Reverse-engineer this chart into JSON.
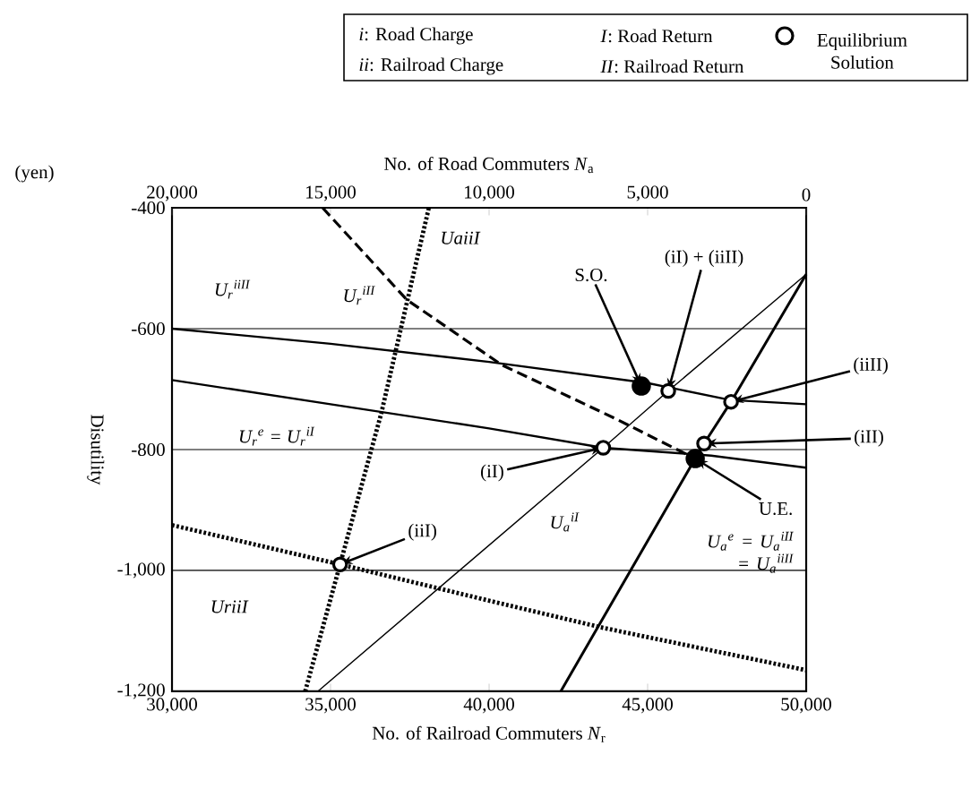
{
  "chart_data": {
    "type": "line",
    "xlabel": "No. of Railroad Commuters *N*$_{r}$",
    "x2label": "No. of Road Commuters *N*$_{a}$",
    "ylabel": "Disutility",
    "xlim": [
      30000,
      50000
    ],
    "xticks": [
      {
        "value": 30000,
        "label": "30,000"
      },
      {
        "value": 35000,
        "label": "35,000"
      },
      {
        "value": 40000,
        "label": "40,000"
      },
      {
        "value": 45000,
        "label": "45,000"
      },
      {
        "value": 50000,
        "label": "50,000"
      }
    ],
    "x2lim": [
      20000,
      0
    ],
    "x2ticks": [
      {
        "value": 20000,
        "label": "20,000"
      },
      {
        "value": 15000,
        "label": "15,000"
      },
      {
        "value": 10000,
        "label": "10,000"
      },
      {
        "value": 5000,
        "label": "5,000"
      },
      0
    ],
    "ylim": [
      -1200,
      -400
    ],
    "yticks": [
      {
        "value": -1200,
        "label": "-1,200"
      },
      {
        "value": -1000,
        "label": "-1,000"
      },
      -800,
      -600,
      -400
    ],
    "grid": "y",
    "legend": "top",
    "series": [
      {
        "name": "U$_{r}$$^{iiII}$",
        "type": "line",
        "line_style": "solid",
        "color": "#000000",
        "x": [
          30000,
          35000,
          40000,
          45000,
          47600,
          50000
        ],
        "values": [
          -600,
          -625,
          -655,
          -690,
          -718,
          -725
        ]
      },
      {
        "name": "U$_{r}$$^{e}$ = U$_{r}$$^{iI}$",
        "type": "line",
        "line_style": "solid",
        "color": "#000000",
        "x": [
          30000,
          35000,
          40000,
          43600,
          47000,
          50000
        ],
        "values": [
          -685,
          -725,
          -765,
          -797,
          -810,
          -830
        ]
      },
      {
        "name": "UriiI",
        "type": "line",
        "line_style": "dotted",
        "color": "#000000",
        "x": [
          30000,
          35300,
          40000,
          43600,
          50000
        ],
        "values": [
          -925,
          -990,
          -1050,
          -1095,
          -1165
        ]
      },
      {
        "name": "UaiiI",
        "type": "line",
        "line_style": "dotted",
        "color": "#000000",
        "x": [
          34200,
          35300,
          36600,
          38100
        ],
        "values": [
          -1200,
          -990,
          -740,
          -400
        ]
      },
      {
        "name": "U$_{a}$$^{iI}$",
        "type": "line",
        "line_style": "solid",
        "color": "#000000",
        "x": [
          34600,
          43600,
          45650,
          50000
        ],
        "values": [
          -1200,
          -797,
          -703,
          -510
        ]
      },
      {
        "name": "U$_{a}$$^{e}$ = U$_{a}$$^{iII}$ = U$_{a}$$^{iiII}$",
        "type": "line",
        "line_style": "solid",
        "color": "#000000",
        "x": [
          42260,
          46500,
          46780,
          47630,
          50000
        ],
        "values": [
          -1200,
          -815,
          -790,
          -721,
          -510
        ]
      },
      {
        "name": "U$_{r}$$^{iII}$",
        "type": "line",
        "line_style": "dashed",
        "color": "#000000",
        "x": [
          34750,
          37400,
          40400,
          43950,
          46500
        ],
        "values": [
          -400,
          -552,
          -660,
          -748,
          -815
        ]
      },
      {
        "name": "Equilibrium Solution",
        "type": "scatter",
        "marker": "circle",
        "color": "#000000",
        "x": [
          45650,
          47630,
          46780,
          43600,
          35300
        ],
        "values": [
          -703,
          -721,
          -790,
          -797,
          -990
        ]
      },
      {
        "type": "scatter",
        "marker": "circle",
        "color": "#000000",
        "x": [
          44800,
          46500
        ],
        "values": [
          -695,
          -815
        ]
      }
    ],
    "annotations": [
      "*i*: Road Charge",
      "*ii*: Railroad Charge",
      "*I*: Road Return",
      "*II*: Railroad Return",
      "(yen)",
      {
        "text": "S.O.",
        "x": 44800,
        "y": -695
      },
      {
        "text": "(iI) + (iiII)",
        "x": 45650,
        "y": -703
      },
      {
        "text": "(iiII)",
        "x": 47630,
        "y": -721
      },
      {
        "text": "(iII)",
        "x": 46780,
        "y": -790
      },
      {
        "text": "U.E.",
        "x": 46500,
        "y": -815
      },
      {
        "text": "(iI)",
        "x": 43600,
        "y": -797
      },
      {
        "text": "(iiI)",
        "x": 35300,
        "y": -990
      }
    ]
  }
}
